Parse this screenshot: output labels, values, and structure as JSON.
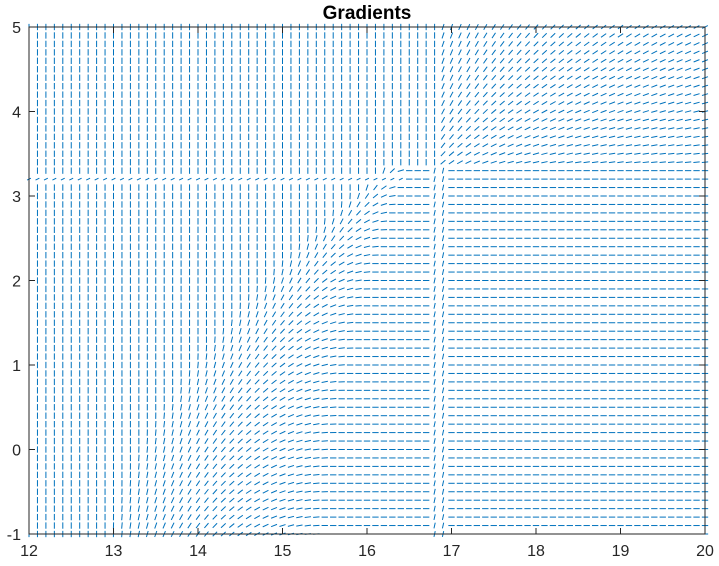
{
  "chart_data": {
    "type": "quiver",
    "title": "Gradients",
    "xlabel": "",
    "ylabel": "",
    "xlim": [
      12,
      20
    ],
    "ylim": [
      -1,
      5
    ],
    "x_ticks": [
      12,
      13,
      14,
      15,
      16,
      17,
      18,
      19,
      20
    ],
    "y_ticks": [
      -1,
      0,
      1,
      2,
      3,
      4,
      5
    ],
    "grid": false,
    "arrow_color": "#0072BD",
    "field": {
      "x_samples": {
        "start": 12.0,
        "step": 0.1,
        "count": 81
      },
      "y_samples": {
        "start": -1.0,
        "step": 0.1,
        "count": 61
      },
      "regions": [
        {
          "name": "left-vertical",
          "direction": "vertical",
          "bounds": "x < boundary, y < 3.15"
        },
        {
          "name": "upper-left-vertical",
          "direction": "vertical",
          "bounds": "x < 16.8, y > 3.4"
        },
        {
          "name": "right-horizontal",
          "direction": "horizontal",
          "bounds": "x > 16.8, y < 3.4"
        },
        {
          "name": "upper-right-diagonal",
          "direction": "diagonal",
          "bounds": "x > 16.8, y > 3.4"
        },
        {
          "name": "transition-curve",
          "direction": "rotating",
          "bounds": "between x=13.2 at y=-1 and x=16.5 at y=3.4"
        }
      ],
      "discontinuities": [
        {
          "type": "horizontal",
          "y": 3.2,
          "x_range": [
            12,
            16.5
          ]
        },
        {
          "type": "vertical",
          "x": 16.85,
          "y_range": [
            -1,
            3.4
          ]
        }
      ]
    }
  }
}
